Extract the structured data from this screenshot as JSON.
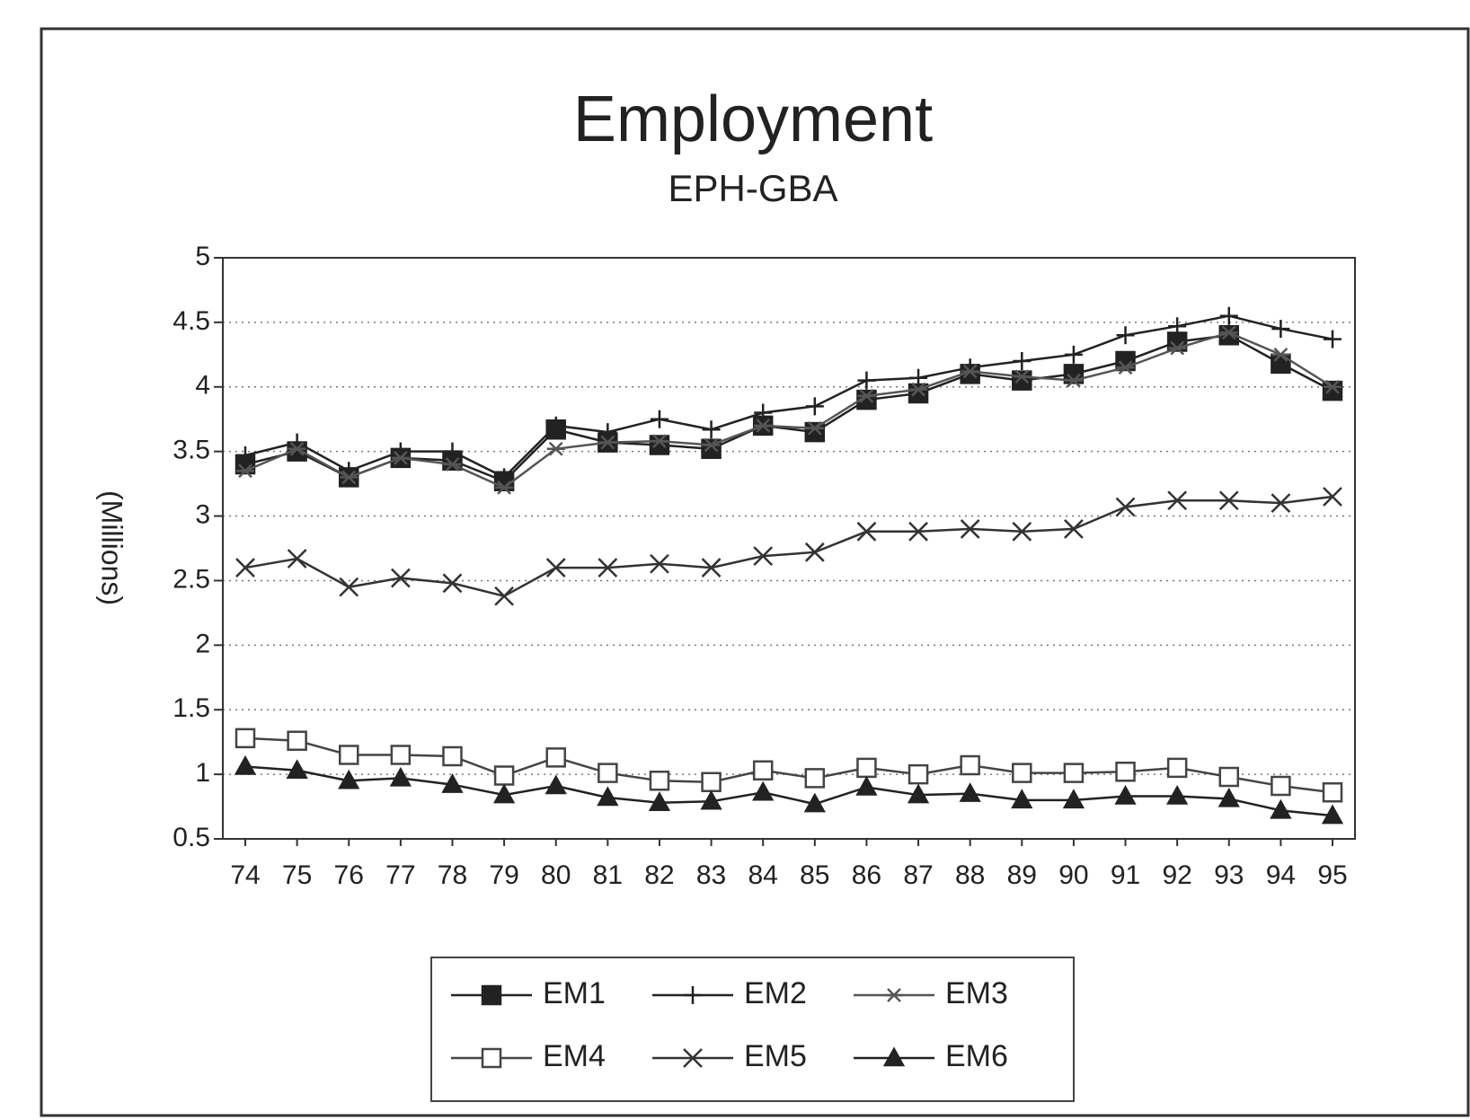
{
  "chart_data": {
    "type": "line",
    "title": "Employment",
    "subtitle": "EPH-GBA",
    "y_label": "(Millions)",
    "categories": [
      "74",
      "75",
      "76",
      "77",
      "78",
      "79",
      "80",
      "81",
      "82",
      "83",
      "84",
      "85",
      "86",
      "87",
      "88",
      "89",
      "90",
      "91",
      "92",
      "93",
      "94",
      "95"
    ],
    "series": [
      {
        "name": "EM1",
        "color": "#222222",
        "marker": "filled-square",
        "values": [
          3.4,
          3.5,
          3.3,
          3.45,
          3.43,
          3.27,
          3.67,
          3.57,
          3.55,
          3.52,
          3.7,
          3.65,
          3.9,
          3.95,
          4.1,
          4.05,
          4.1,
          4.2,
          4.35,
          4.4,
          4.18,
          3.97
        ]
      },
      {
        "name": "EM2",
        "color": "#222222",
        "marker": "plus",
        "values": [
          3.47,
          3.57,
          3.35,
          3.5,
          3.5,
          3.3,
          3.7,
          3.65,
          3.75,
          3.67,
          3.8,
          3.85,
          4.05,
          4.07,
          4.15,
          4.2,
          4.25,
          4.4,
          4.47,
          4.55,
          4.45,
          4.37
        ]
      },
      {
        "name": "EM3",
        "color": "#555555",
        "marker": "asterisk",
        "values": [
          3.35,
          3.52,
          3.3,
          3.45,
          3.4,
          3.22,
          3.52,
          3.57,
          3.58,
          3.55,
          3.7,
          3.68,
          3.93,
          3.98,
          4.12,
          4.08,
          4.05,
          4.15,
          4.3,
          4.42,
          4.25,
          4.0
        ]
      },
      {
        "name": "EM4",
        "color": "#444444",
        "marker": "open-square",
        "values": [
          1.28,
          1.26,
          1.15,
          1.15,
          1.14,
          0.99,
          1.13,
          1.01,
          0.95,
          0.94,
          1.03,
          0.97,
          1.05,
          1.0,
          1.07,
          1.01,
          1.01,
          1.02,
          1.05,
          0.98,
          0.91,
          0.86
        ]
      },
      {
        "name": "EM5",
        "color": "#333333",
        "marker": "x",
        "values": [
          2.6,
          2.67,
          2.45,
          2.52,
          2.48,
          2.38,
          2.6,
          2.6,
          2.63,
          2.6,
          2.69,
          2.72,
          2.88,
          2.88,
          2.9,
          2.88,
          2.9,
          3.07,
          3.12,
          3.12,
          3.1,
          3.15
        ]
      },
      {
        "name": "EM6",
        "color": "#222222",
        "marker": "triangle",
        "values": [
          1.06,
          1.03,
          0.95,
          0.97,
          0.92,
          0.84,
          0.91,
          0.82,
          0.78,
          0.79,
          0.86,
          0.77,
          0.9,
          0.84,
          0.85,
          0.8,
          0.8,
          0.83,
          0.83,
          0.81,
          0.72,
          0.68
        ]
      }
    ],
    "ylim": [
      0.5,
      5
    ],
    "yticks": [
      0.5,
      1,
      1.5,
      2,
      2.5,
      3,
      3.5,
      4,
      4.5,
      5
    ],
    "grid": true,
    "legend": "bottom"
  }
}
